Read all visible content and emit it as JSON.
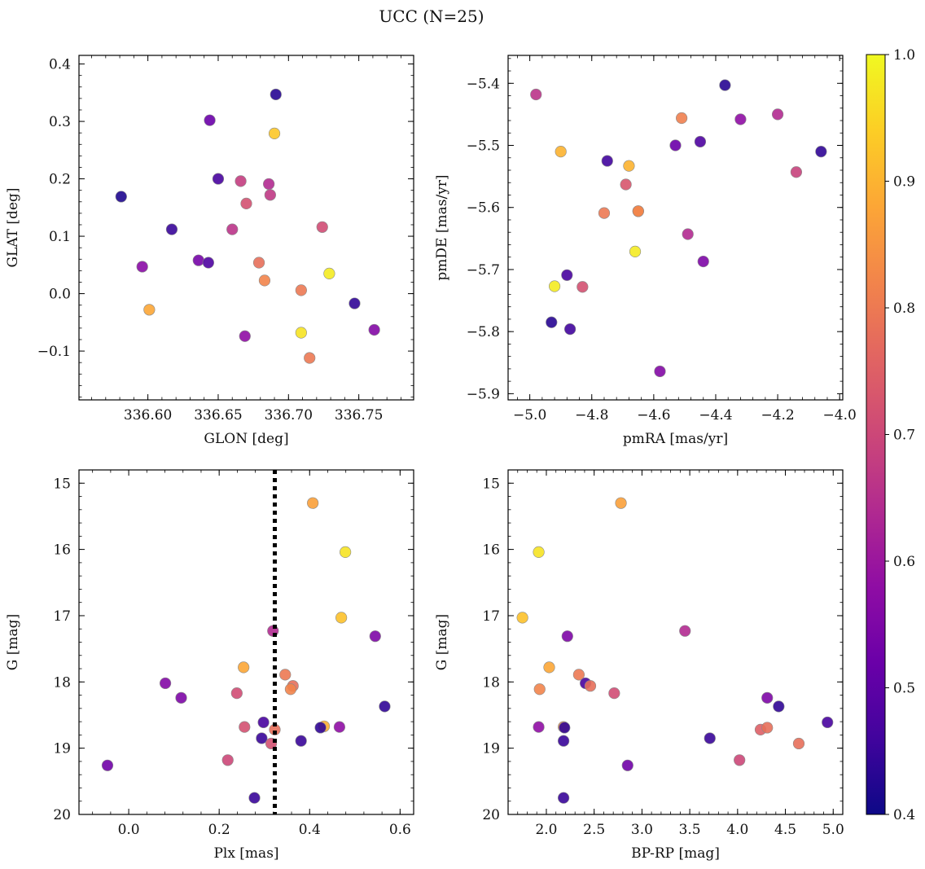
{
  "figure": {
    "title": "UCC (N=25)"
  },
  "colorbar": {
    "range": [
      0.4,
      1.0
    ],
    "ticks": [
      0.4,
      0.5,
      0.6,
      0.7,
      0.8,
      0.9,
      1.0
    ],
    "tick_labels": [
      "0.4",
      "0.5",
      "0.6",
      "0.7",
      "0.8",
      "0.9",
      "1.0"
    ]
  },
  "colors": {
    "marker_edge": "#8a8a8a",
    "dotted_line": "#000000",
    "axes": "#000000"
  },
  "chart_data": [
    {
      "type": "scatter",
      "name": "glon-glat",
      "xlabel": "GLON [deg]",
      "ylabel": "GLAT [deg]",
      "xlim": [
        336.551,
        336.789
      ],
      "ylim": [
        -0.185,
        0.415
      ],
      "xticks": [
        336.6,
        336.65,
        336.7,
        336.75
      ],
      "xtick_labels": [
        "336.60",
        "336.65",
        "336.70",
        "336.75"
      ],
      "yticks": [
        -0.1,
        0.0,
        0.1,
        0.2,
        0.3,
        0.4
      ],
      "ytick_labels": [
        "−0.1",
        "0.0",
        "0.1",
        "0.2",
        "0.3",
        "0.4"
      ],
      "x": [
        336.581,
        336.617,
        336.644,
        336.691,
        336.69,
        336.65,
        336.666,
        336.686,
        336.687,
        336.67,
        336.724,
        336.66,
        336.596,
        336.636,
        336.643,
        336.679,
        336.683,
        336.709,
        336.729,
        336.601,
        336.747,
        336.761,
        336.669,
        336.709,
        336.715
      ],
      "y": [
        0.169,
        0.112,
        0.302,
        0.347,
        0.279,
        0.2,
        0.196,
        0.191,
        0.172,
        0.157,
        0.116,
        0.112,
        0.047,
        0.058,
        0.054,
        0.054,
        0.023,
        0.006,
        0.035,
        -0.028,
        -0.017,
        -0.063,
        -0.074,
        -0.068,
        -0.112
      ],
      "c": [
        0.42,
        0.45,
        0.52,
        0.43,
        0.93,
        0.47,
        0.68,
        0.64,
        0.67,
        0.72,
        0.71,
        0.66,
        0.57,
        0.54,
        0.48,
        0.78,
        0.82,
        0.8,
        0.98,
        0.88,
        0.44,
        0.56,
        0.58,
        0.97,
        0.8
      ]
    },
    {
      "type": "scatter",
      "name": "pmra-pmde",
      "xlabel": "pmRA [mas/yr]",
      "ylabel": "pmDE [mas/yr]",
      "xlim": [
        -5.07,
        -3.99
      ],
      "ylim": [
        -5.91,
        -5.355
      ],
      "xticks": [
        -5.0,
        -4.8,
        -4.6,
        -4.4,
        -4.2,
        -4.0
      ],
      "xtick_labels": [
        "−5.0",
        "−4.8",
        "−4.6",
        "−4.4",
        "−4.2",
        "−4.0"
      ],
      "yticks": [
        -5.9,
        -5.8,
        -5.7,
        -5.6,
        -5.5,
        -5.4
      ],
      "ytick_labels": [
        "−5.9",
        "−5.8",
        "−5.7",
        "−5.6",
        "−5.5",
        "−5.4"
      ],
      "x": [
        -4.98,
        -4.37,
        -4.51,
        -4.32,
        -4.2,
        -4.06,
        -4.53,
        -4.45,
        -4.9,
        -4.68,
        -4.75,
        -4.14,
        -4.69,
        -4.65,
        -4.76,
        -4.66,
        -4.49,
        -4.44,
        -4.88,
        -4.92,
        -4.83,
        -4.93,
        -4.87,
        -4.58,
        -4.65
      ],
      "y": [
        -5.418,
        -5.403,
        -5.456,
        -5.458,
        -5.45,
        -5.51,
        -5.5,
        -5.494,
        -5.51,
        -5.533,
        -5.525,
        -5.543,
        -5.563,
        -5.606,
        -5.609,
        -5.671,
        -5.643,
        -5.687,
        -5.709,
        -5.727,
        -5.728,
        -5.785,
        -5.796,
        -5.864,
        -5.606
      ],
      "c": [
        0.66,
        0.43,
        0.81,
        0.58,
        0.64,
        0.44,
        0.52,
        0.48,
        0.9,
        0.9,
        0.46,
        0.69,
        0.73,
        0.84,
        0.8,
        0.98,
        0.64,
        0.55,
        0.47,
        0.98,
        0.72,
        0.43,
        0.46,
        0.56,
        0.82
      ]
    },
    {
      "type": "scatter",
      "name": "plx-g",
      "xlabel": "Plx [mas]",
      "ylabel": "G [mag]",
      "xlim": [
        -0.11,
        0.63
      ],
      "ylim": [
        20.0,
        14.8
      ],
      "invert_y": true,
      "xticks": [
        0.0,
        0.2,
        0.4,
        0.6
      ],
      "xtick_labels": [
        "0.0",
        "0.2",
        "0.4",
        "0.6"
      ],
      "yticks": [
        15,
        16,
        17,
        18,
        19,
        20
      ],
      "ytick_labels": [
        "15",
        "16",
        "17",
        "18",
        "19",
        "20"
      ],
      "vline": {
        "x": 0.323,
        "style": "dotted"
      },
      "x": [
        0.407,
        0.479,
        0.47,
        0.319,
        0.545,
        0.254,
        0.346,
        0.363,
        0.081,
        0.358,
        0.239,
        0.116,
        0.566,
        0.298,
        0.256,
        0.432,
        0.466,
        0.424,
        0.323,
        0.294,
        0.315,
        0.381,
        0.219,
        -0.047,
        0.278
      ],
      "y": [
        15.3,
        16.04,
        17.03,
        17.23,
        17.31,
        17.78,
        17.89,
        18.06,
        18.02,
        18.11,
        18.17,
        18.24,
        18.37,
        18.61,
        18.68,
        18.67,
        18.68,
        18.69,
        18.72,
        18.85,
        18.93,
        18.89,
        19.18,
        19.26,
        19.75
      ],
      "c": [
        0.87,
        0.97,
        0.92,
        0.64,
        0.55,
        0.88,
        0.8,
        0.78,
        0.56,
        0.82,
        0.71,
        0.55,
        0.44,
        0.47,
        0.72,
        0.89,
        0.58,
        0.44,
        0.78,
        0.45,
        0.72,
        0.45,
        0.7,
        0.53,
        0.45
      ]
    },
    {
      "type": "scatter",
      "name": "bprp-g",
      "xlabel": "BP-RP [mag]",
      "ylabel": "G [mag]",
      "xlim": [
        1.6,
        5.1
      ],
      "ylim": [
        20.0,
        14.8
      ],
      "invert_y": true,
      "xticks": [
        2.0,
        2.5,
        3.0,
        3.5,
        4.0,
        4.5,
        5.0
      ],
      "xtick_labels": [
        "2.0",
        "2.5",
        "3.0",
        "3.5",
        "4.0",
        "4.5",
        "5.0"
      ],
      "yticks": [
        15,
        16,
        17,
        18,
        19,
        20
      ],
      "ytick_labels": [
        "15",
        "16",
        "17",
        "18",
        "19",
        "20"
      ],
      "x": [
        2.78,
        1.92,
        1.75,
        3.45,
        2.22,
        2.03,
        2.34,
        2.41,
        2.46,
        1.93,
        2.71,
        4.31,
        4.43,
        4.94,
        1.92,
        2.18,
        2.19,
        4.24,
        4.31,
        3.71,
        4.64,
        2.18,
        4.02,
        2.85,
        2.18
      ],
      "y": [
        15.3,
        16.04,
        17.03,
        17.23,
        17.31,
        17.78,
        17.89,
        18.02,
        18.06,
        18.11,
        18.17,
        18.24,
        18.37,
        18.61,
        18.68,
        18.68,
        18.69,
        18.72,
        18.69,
        18.85,
        18.93,
        18.89,
        19.18,
        19.26,
        19.75
      ],
      "c": [
        0.87,
        0.97,
        0.92,
        0.64,
        0.55,
        0.88,
        0.8,
        0.47,
        0.78,
        0.82,
        0.71,
        0.55,
        0.44,
        0.47,
        0.58,
        0.84,
        0.44,
        0.75,
        0.78,
        0.45,
        0.78,
        0.45,
        0.7,
        0.53,
        0.45
      ]
    }
  ]
}
